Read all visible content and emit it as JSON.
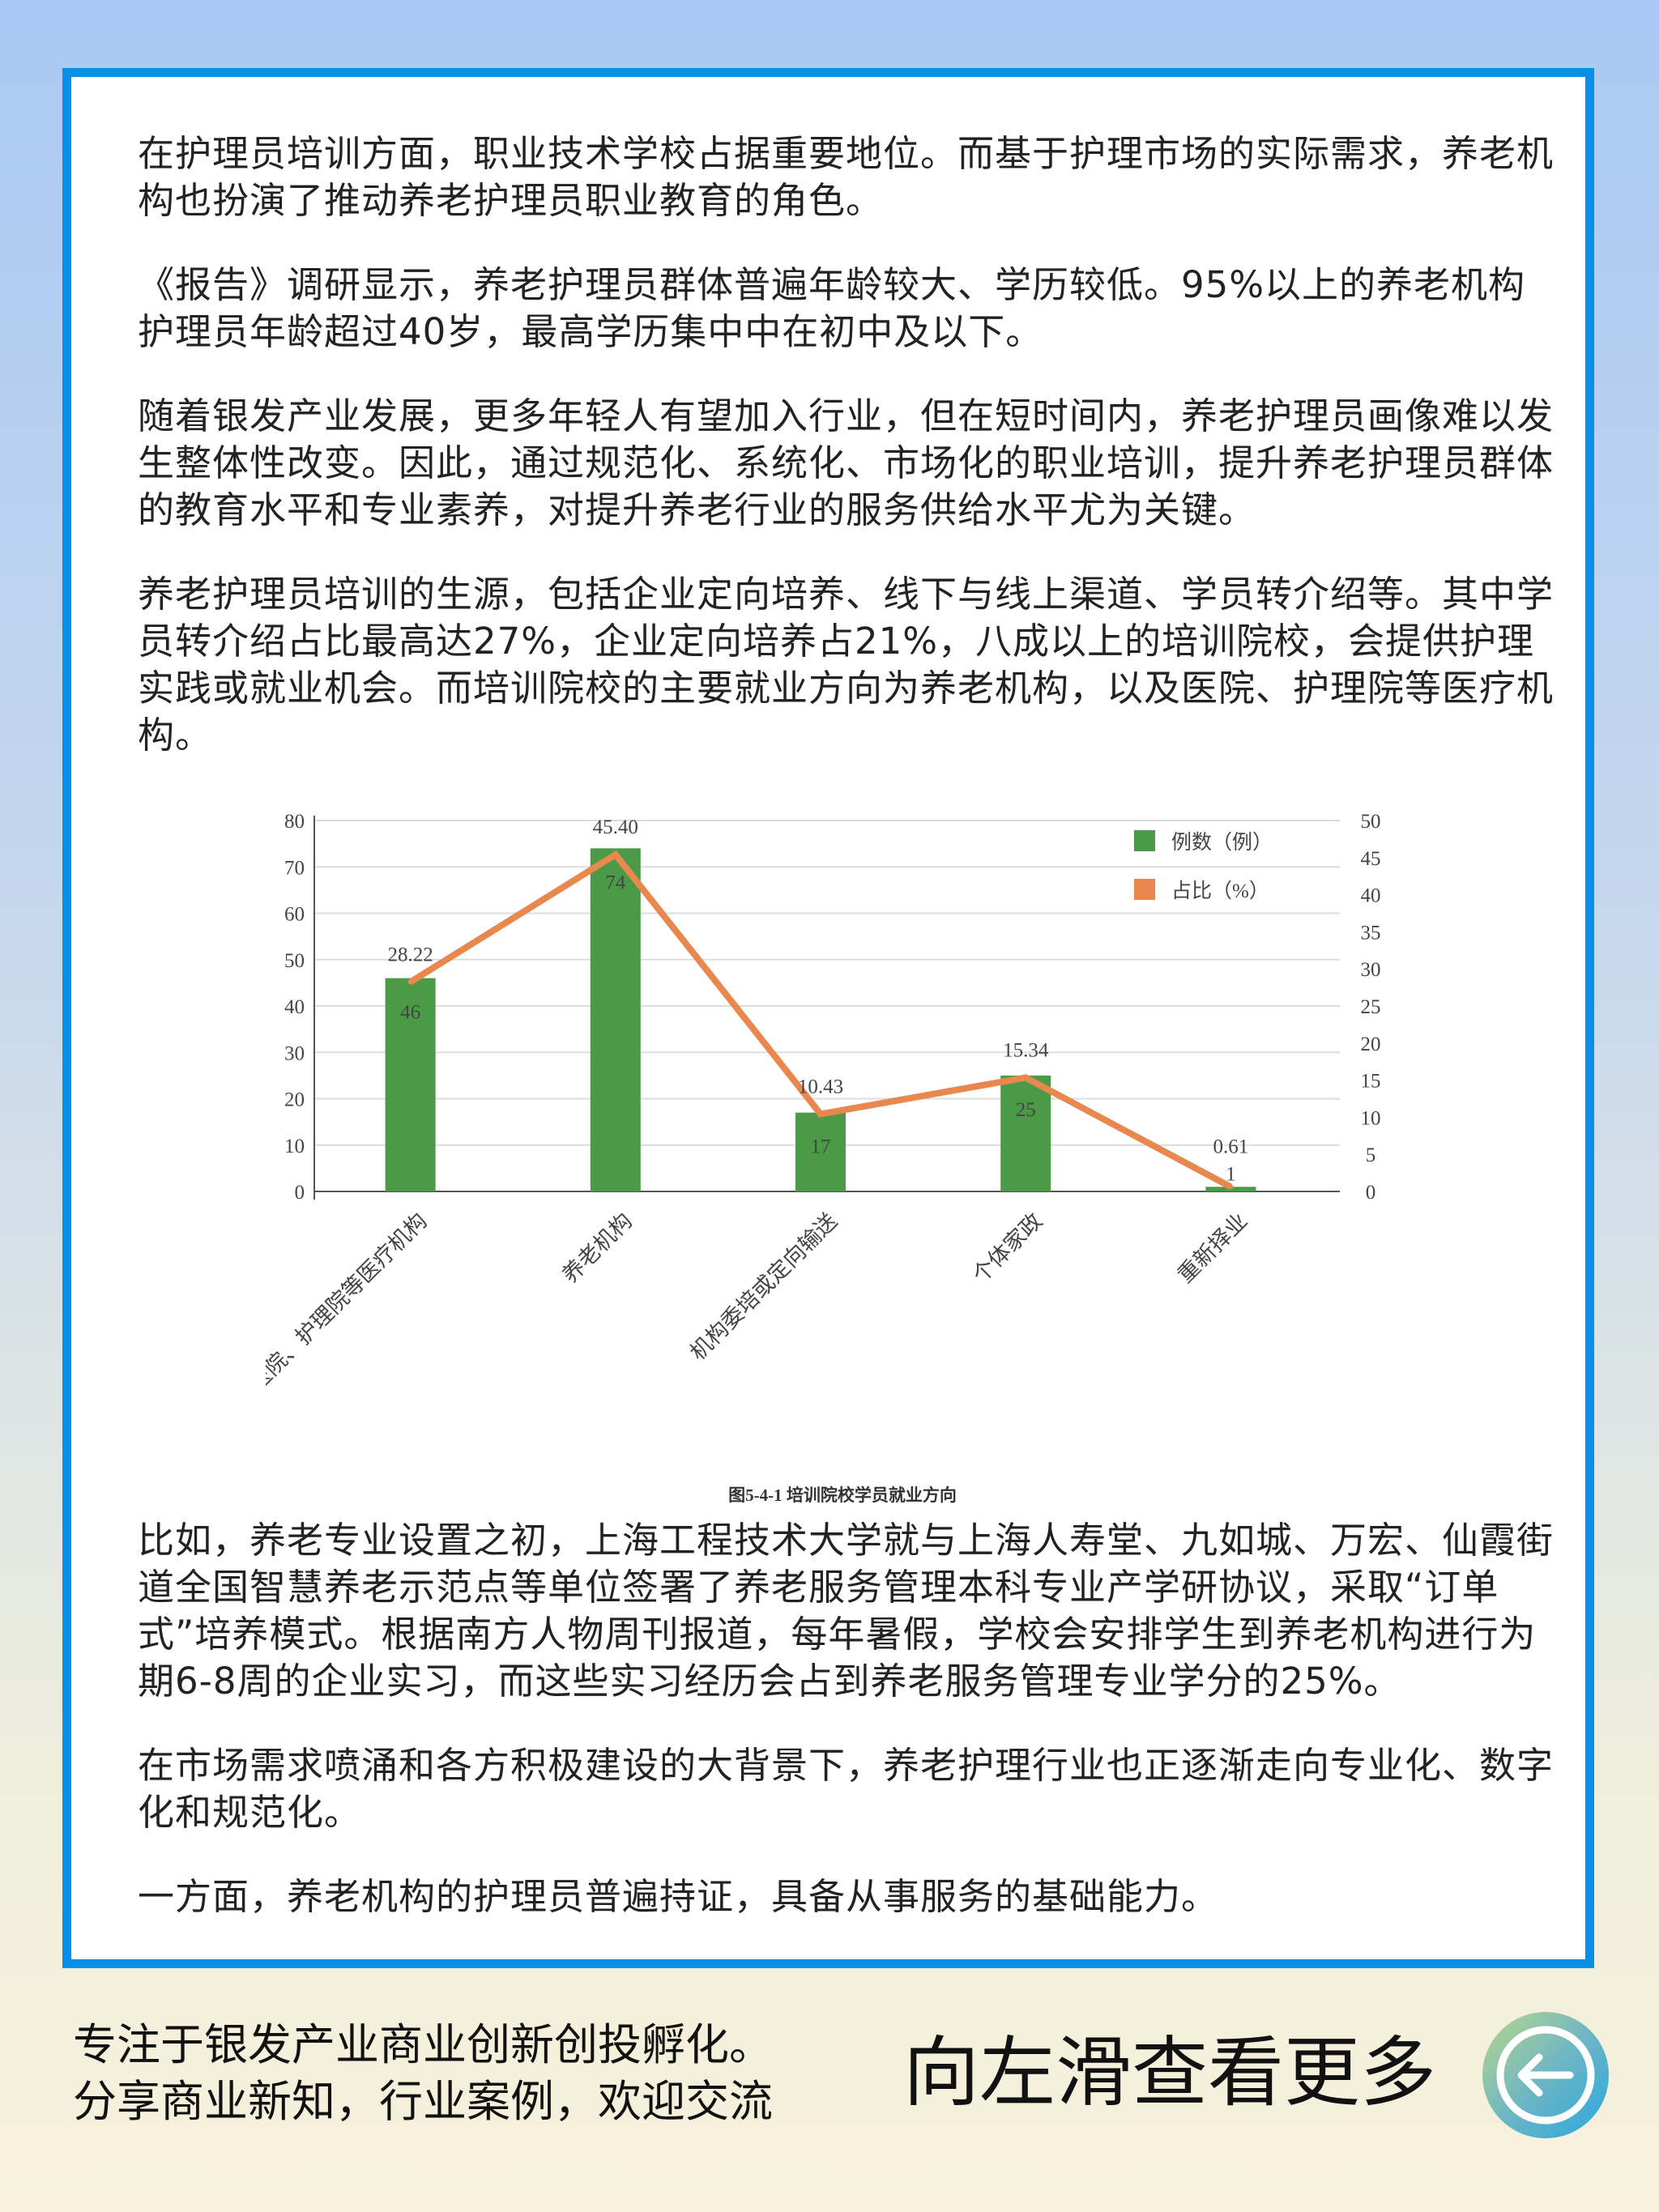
{
  "article": {
    "paragraphs": [
      "在护理员培训方面，职业技术学校占据重要地位。而基于护理市场的实际需求，养老机构也扮演了推动养老护理员职业教育的角色。",
      "《报告》调研显示，养老护理员群体普遍年龄较大、学历较低。95%以上的养老机构护理员年龄超过40岁，最高学历集中中在初中及以下。",
      "随着银发产业发展，更多年轻人有望加入行业，但在短时间内，养老护理员画像难以发生整体性改变。因此，通过规范化、系统化、市场化的职业培训，提升养老护理员群体的教育水平和专业素养，对提升养老行业的服务供给水平尤为关键。",
      "养老护理员培训的生源，包括企业定向培养、线下与线上渠道、学员转介绍等。其中学员转介绍占比最高达27%，企业定向培养占21%，八成以上的培训院校，会提供护理实践或就业机会。而培训院校的主要就业方向为养老机构，以及医院、护理院等医疗机构。",
      "比如，养老专业设置之初，上海工程技术大学就与上海人寿堂、九如城、万宏、仙霞街道全国智慧养老示范点等单位签署了养老服务管理本科专业产学研协议，采取“订单式”培养模式。根据南方人物周刊报道，每年暑假，学校会安排学生到养老机构进行为期6-8周的企业实习，而这些实习经历会占到养老服务管理专业学分的25%。",
      "在市场需求喷涌和各方积极建设的大背景下，养老护理行业也正逐渐走向专业化、数字化和规范化。",
      "一方面，养老机构的护理员普遍持证，具备从事服务的基础能力。"
    ]
  },
  "chart_data": {
    "type": "bar+line",
    "title": "图5-4-1 培训院校学员就业方向",
    "categories": [
      "医院、护理院等医疗机构",
      "养老机构",
      "机构委培或定向输送",
      "个体家政",
      "重新择业"
    ],
    "series": [
      {
        "name": "例数（例）",
        "type": "bar",
        "axis": "left",
        "color": "#4a9a47",
        "values": [
          46,
          74,
          17,
          25,
          1
        ]
      },
      {
        "name": "占比（%）",
        "type": "line",
        "axis": "right",
        "color": "#e8874e",
        "values": [
          28.22,
          45.4,
          10.43,
          15.34,
          0.61
        ]
      }
    ],
    "left_axis": {
      "range": [
        0,
        80
      ],
      "ticks": [
        "0",
        "10",
        "20",
        "30",
        "40",
        "50",
        "60",
        "70",
        "80"
      ]
    },
    "right_axis": {
      "range": [
        0,
        50
      ],
      "ticks": [
        "0",
        "5",
        "10",
        "15",
        "20",
        "25",
        "30",
        "35",
        "40",
        "45",
        "50"
      ]
    },
    "line_labels": [
      "28.22",
      "45.40",
      "10.43",
      "15.34",
      "0.61"
    ],
    "bar_labels": [
      "46",
      "74",
      "17",
      "25",
      "1"
    ],
    "grid": true,
    "legend": "top-right"
  },
  "footer": {
    "line1": "专注于银发产业商业创新创投孵化。",
    "line2": "分享商业新知，行业案例，欢迎交流",
    "swipe_hint": "向左滑查看更多",
    "arrow_icon": "arrow-left-circle-icon"
  }
}
